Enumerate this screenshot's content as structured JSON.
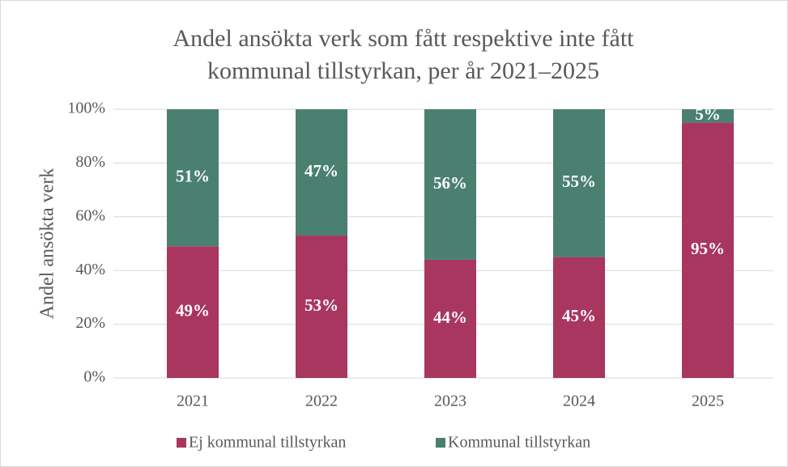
{
  "chart_data": {
    "type": "stacked_bar",
    "title": [
      "Andel ansökta verk som fått respektive inte fått",
      "kommunal tillstyrkan, per år 2021–2025"
    ],
    "ylabel": "Andel ansökta verk",
    "categories": [
      "2021",
      "2022",
      "2023",
      "2024",
      "2025"
    ],
    "series": [
      {
        "name": "Ej kommunal tillstyrkan",
        "color": "#a8365f",
        "values": [
          49,
          53,
          44,
          45,
          95
        ],
        "value_labels": [
          "49%",
          "53%",
          "44%",
          "45%",
          "95%"
        ]
      },
      {
        "name": "Kommunal tillstyrkan",
        "color": "#4a8070",
        "values": [
          51,
          47,
          56,
          55,
          5
        ],
        "value_labels": [
          "51%",
          "47%",
          "56%",
          "55%",
          "5%"
        ]
      }
    ],
    "ylim": [
      0,
      100
    ],
    "yticks": [
      {
        "value": 0,
        "label": "0%"
      },
      {
        "value": 20,
        "label": "20%"
      },
      {
        "value": 40,
        "label": "40%"
      },
      {
        "value": 60,
        "label": "60%"
      },
      {
        "value": 80,
        "label": "80%"
      },
      {
        "value": 100,
        "label": "100%"
      }
    ],
    "grid": true,
    "legend": "bottom"
  }
}
